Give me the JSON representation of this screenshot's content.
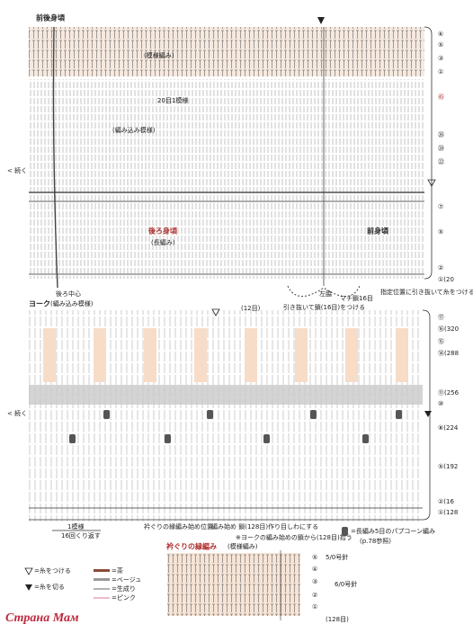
{
  "top_chart": {
    "title": "前後身頃",
    "labels": [
      "(模様編み)",
      "20目1模様",
      "(編み込み模様)",
      "後ろ身頃",
      "(長編み)",
      "前身頃",
      "< 続く"
    ],
    "row_labels": [
      "⑥",
      "⑤",
      "③",
      "①",
      "㊺",
      "㉖",
      "㉔",
      "㉒",
      "⑦",
      "⑤",
      "②",
      "①(20"
    ],
    "notes": [
      "後ろ中心",
      "左脇",
      "マチ鎖16目",
      "引き抜いて鎖(16目)をつける",
      "指定位置に引き抜いて糸をつける"
    ]
  },
  "yoke_chart": {
    "title": "ヨーク",
    "subtitle": "(編み込み模様)",
    "labels": [
      "(12目)",
      "1模様",
      "16回くり返す",
      "衿ぐりの縁編み始め位置",
      "編み始め 鎖(128目)作り目しわにする",
      "※ヨークの編み始めの鎖から(128目)拾う",
      "< 続く"
    ],
    "row_labels": [
      "⑰",
      "⑯(320",
      "⑮",
      "⑭(288",
      "⑪(256",
      "⑩",
      "⑧(224",
      "⑤(192",
      "②(16",
      "①(128"
    ]
  },
  "edging_chart": {
    "title": "衿ぐりの縁編み",
    "subtitle": "(模様編み)",
    "row_labels": [
      "⑤",
      "④",
      "③",
      "②",
      "①"
    ],
    "needles": [
      "5/0号針",
      "6/0号針"
    ],
    "stitch_count": "(128目)"
  },
  "legend": {
    "popcorn": "=長編み5目のパプコーン編み",
    "popcorn_ref": "(p.78参照)",
    "attach": "=糸をつける",
    "cut": "=糸を切る",
    "colors": [
      "=茶",
      "=ベージュ",
      "=生成り",
      "=ピンク"
    ]
  },
  "watermark": "Страна Мам"
}
